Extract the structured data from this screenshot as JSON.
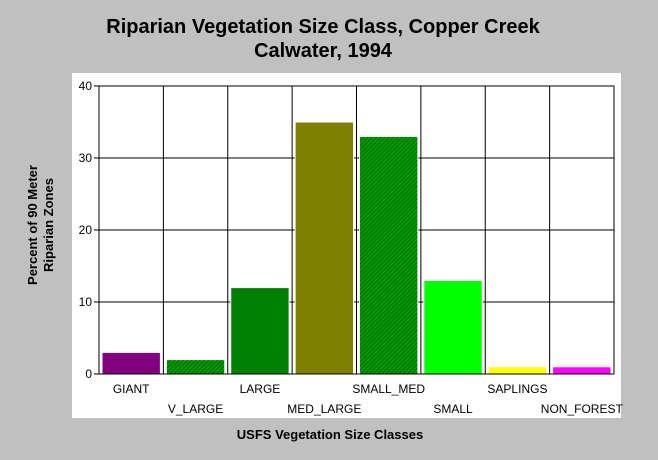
{
  "chart_data": {
    "type": "bar",
    "title_lines": [
      "Riparian Vegetation Size Class, Copper Creek",
      "Calwater, 1994"
    ],
    "xlabel": "USFS Vegetation Size Classes",
    "ylabel_lines": [
      "Percent of 90 Meter",
      "Riparian Zones"
    ],
    "ylim": [
      0,
      40
    ],
    "yticks": [
      0,
      10,
      20,
      30,
      40
    ],
    "grid": true,
    "legend": "none",
    "categories": [
      "GIANT",
      "V_LARGE",
      "LARGE",
      "MED_LARGE",
      "SMALL_MED",
      "SMALL",
      "SAPLINGS",
      "NON_FOREST"
    ],
    "values": [
      3,
      2,
      12,
      35,
      33,
      13,
      1,
      1
    ],
    "colors": [
      "#800080",
      "#00b000",
      "#008000",
      "#808000",
      "#00b000",
      "#00ff00",
      "#ffff00",
      "#ff00ff"
    ],
    "hatched": [
      false,
      true,
      false,
      false,
      true,
      false,
      false,
      false
    ]
  }
}
